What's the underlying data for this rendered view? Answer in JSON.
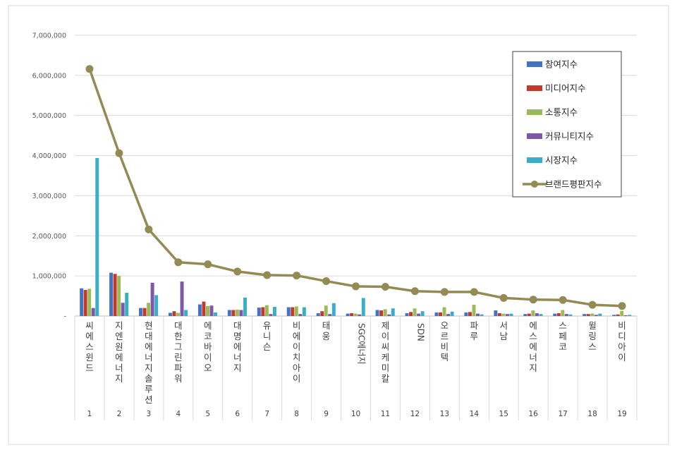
{
  "chart_data": {
    "type": "bar",
    "title": "",
    "xlabel": "",
    "ylabel": "",
    "ylim": [
      0,
      7000000
    ],
    "grid": true,
    "legend_position": "top-right",
    "y_ticks": [
      "-",
      "1,000,000",
      "2,000,000",
      "3,000,000",
      "4,000,000",
      "5,000,000",
      "6,000,000",
      "7,000,000"
    ],
    "categories": [
      "씨에스윈드",
      "지엔원에너지",
      "현대에너지솔루션",
      "대한그린파워",
      "에코바이오",
      "대명에너지",
      "유니슨",
      "비에이치아이",
      "태웅",
      "SGC에너지",
      "제이씨케미칼",
      "SDN",
      "오르비텍",
      "파루",
      "서남",
      "에스에너지",
      "스페코",
      "윌링스",
      "비디아이"
    ],
    "ranks": [
      "1",
      "2",
      "3",
      "4",
      "5",
      "6",
      "7",
      "8",
      "9",
      "10",
      "11",
      "12",
      "13",
      "14",
      "15",
      "16",
      "17",
      "18",
      "19"
    ],
    "series": [
      {
        "name": "참여지수",
        "kind": "bar",
        "color": "#4472C4",
        "values": [
          690000,
          1080000,
          200000,
          80000,
          290000,
          150000,
          210000,
          220000,
          70000,
          60000,
          150000,
          70000,
          90000,
          90000,
          140000,
          50000,
          60000,
          50000,
          30000
        ]
      },
      {
        "name": "미디어지수",
        "kind": "bar",
        "color": "#C0392B",
        "values": [
          650000,
          1050000,
          200000,
          120000,
          360000,
          150000,
          220000,
          220000,
          120000,
          70000,
          140000,
          100000,
          90000,
          100000,
          70000,
          60000,
          70000,
          50000,
          40000
        ]
      },
      {
        "name": "소통지수",
        "kind": "bar",
        "color": "#9BBB59",
        "values": [
          680000,
          1000000,
          330000,
          80000,
          250000,
          160000,
          270000,
          240000,
          260000,
          60000,
          170000,
          190000,
          220000,
          280000,
          60000,
          140000,
          150000,
          60000,
          130000
        ]
      },
      {
        "name": "커뮤니티지수",
        "kind": "bar",
        "color": "#7E57A8",
        "values": [
          200000,
          330000,
          830000,
          860000,
          260000,
          150000,
          50000,
          50000,
          50000,
          40000,
          40000,
          60000,
          50000,
          60000,
          50000,
          70000,
          50000,
          30000,
          20000
        ]
      },
      {
        "name": "시장지수",
        "kind": "bar",
        "color": "#3AADC8",
        "values": [
          3940000,
          580000,
          520000,
          150000,
          90000,
          460000,
          230000,
          220000,
          320000,
          450000,
          190000,
          120000,
          110000,
          40000,
          60000,
          50000,
          40000,
          60000,
          30000
        ]
      },
      {
        "name": "브랜드평판지수",
        "kind": "line",
        "color": "#948A54",
        "values": [
          6160000,
          4060000,
          2160000,
          1340000,
          1290000,
          1110000,
          1020000,
          1010000,
          870000,
          740000,
          730000,
          620000,
          600000,
          600000,
          450000,
          410000,
          400000,
          280000,
          250000
        ]
      }
    ]
  }
}
